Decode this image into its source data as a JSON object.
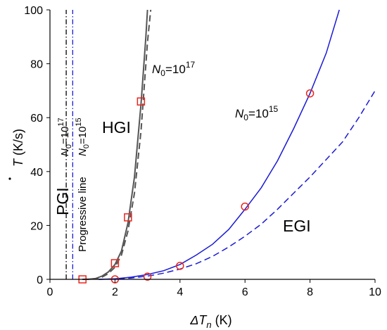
{
  "chart_data": {
    "type": "line",
    "xlabel_base": "ΔT",
    "xlabel_sub": "n",
    "xlabel_unit": " (K)",
    "ylabel_sym": "T",
    "ylabel_unit": " (K/s)",
    "xlim": [
      0,
      10
    ],
    "ylim": [
      0,
      100
    ],
    "xticks": [
      0,
      2,
      4,
      6,
      8,
      10
    ],
    "yticks": [
      0,
      20,
      40,
      60,
      80,
      100
    ],
    "grid": false,
    "colors": {
      "gray": "#555555",
      "blue": "#1a1ad4",
      "red": "#e8261f",
      "black": "#000000"
    },
    "series": [
      {
        "color": "gray",
        "dash": "solid",
        "x": [
          1.0,
          1.2,
          1.4,
          1.6,
          1.8,
          2.0,
          2.2,
          2.4,
          2.6,
          2.8,
          2.95,
          3.0
        ],
        "y": [
          0,
          0.05,
          0.3,
          1.2,
          2.8,
          5.5,
          10.5,
          21,
          38,
          65,
          90,
          100
        ]
      },
      {
        "color": "gray",
        "dash": "dashed",
        "x": [
          1.0,
          1.2,
          1.4,
          1.6,
          1.8,
          2.0,
          2.2,
          2.4,
          2.6,
          2.8,
          3.0,
          3.1
        ],
        "y": [
          0,
          0.03,
          0.2,
          0.8,
          2.2,
          4.5,
          9,
          18,
          32,
          55,
          88,
          100
        ]
      },
      {
        "color": "blue",
        "dash": "solid",
        "x": [
          1.5,
          2.0,
          2.5,
          3.0,
          3.5,
          4.0,
          4.5,
          5.0,
          5.5,
          6.0,
          6.5,
          7.0,
          7.5,
          8.0,
          8.5,
          8.9
        ],
        "y": [
          0,
          0.2,
          0.8,
          1.8,
          3.2,
          5.5,
          9,
          13,
          18.5,
          26,
          34,
          44,
          56,
          69,
          84,
          100
        ]
      },
      {
        "color": "blue",
        "dash": "dashed",
        "x": [
          1.5,
          2.0,
          2.5,
          3.0,
          3.5,
          4.0,
          4.5,
          5.0,
          5.5,
          6.0,
          6.5,
          7.0,
          7.5,
          8.0,
          8.5,
          9.0,
          9.5,
          10.0
        ],
        "y": [
          0,
          0.15,
          0.5,
          1.2,
          2.3,
          3.8,
          5.8,
          8.5,
          12,
          16,
          20.5,
          26,
          32,
          38,
          44.5,
          51,
          60,
          70
        ]
      }
    ],
    "vlines": [
      {
        "x": 0.5,
        "color": "black",
        "dash": "dashdot"
      },
      {
        "x": 0.7,
        "color": "blue",
        "dash": "dashdot"
      }
    ],
    "markers": [
      {
        "shape": "square",
        "color": "red",
        "points": [
          [
            1.0,
            0
          ],
          [
            2.0,
            6
          ],
          [
            2.4,
            23
          ],
          [
            2.8,
            66
          ]
        ]
      },
      {
        "shape": "circle",
        "color": "red",
        "points": [
          [
            2.0,
            0
          ],
          [
            3.0,
            1
          ],
          [
            4.0,
            5
          ],
          [
            6.0,
            27
          ],
          [
            8.0,
            69
          ]
        ]
      }
    ]
  },
  "labels": {
    "pgi": "PGI",
    "hgi": "HGI",
    "egi": "EGI",
    "progressive_line": "Progressive line",
    "n0_base": "N",
    "n0_sub": "0",
    "n0_eq": "=10",
    "exp17": "17",
    "exp15": "15"
  }
}
